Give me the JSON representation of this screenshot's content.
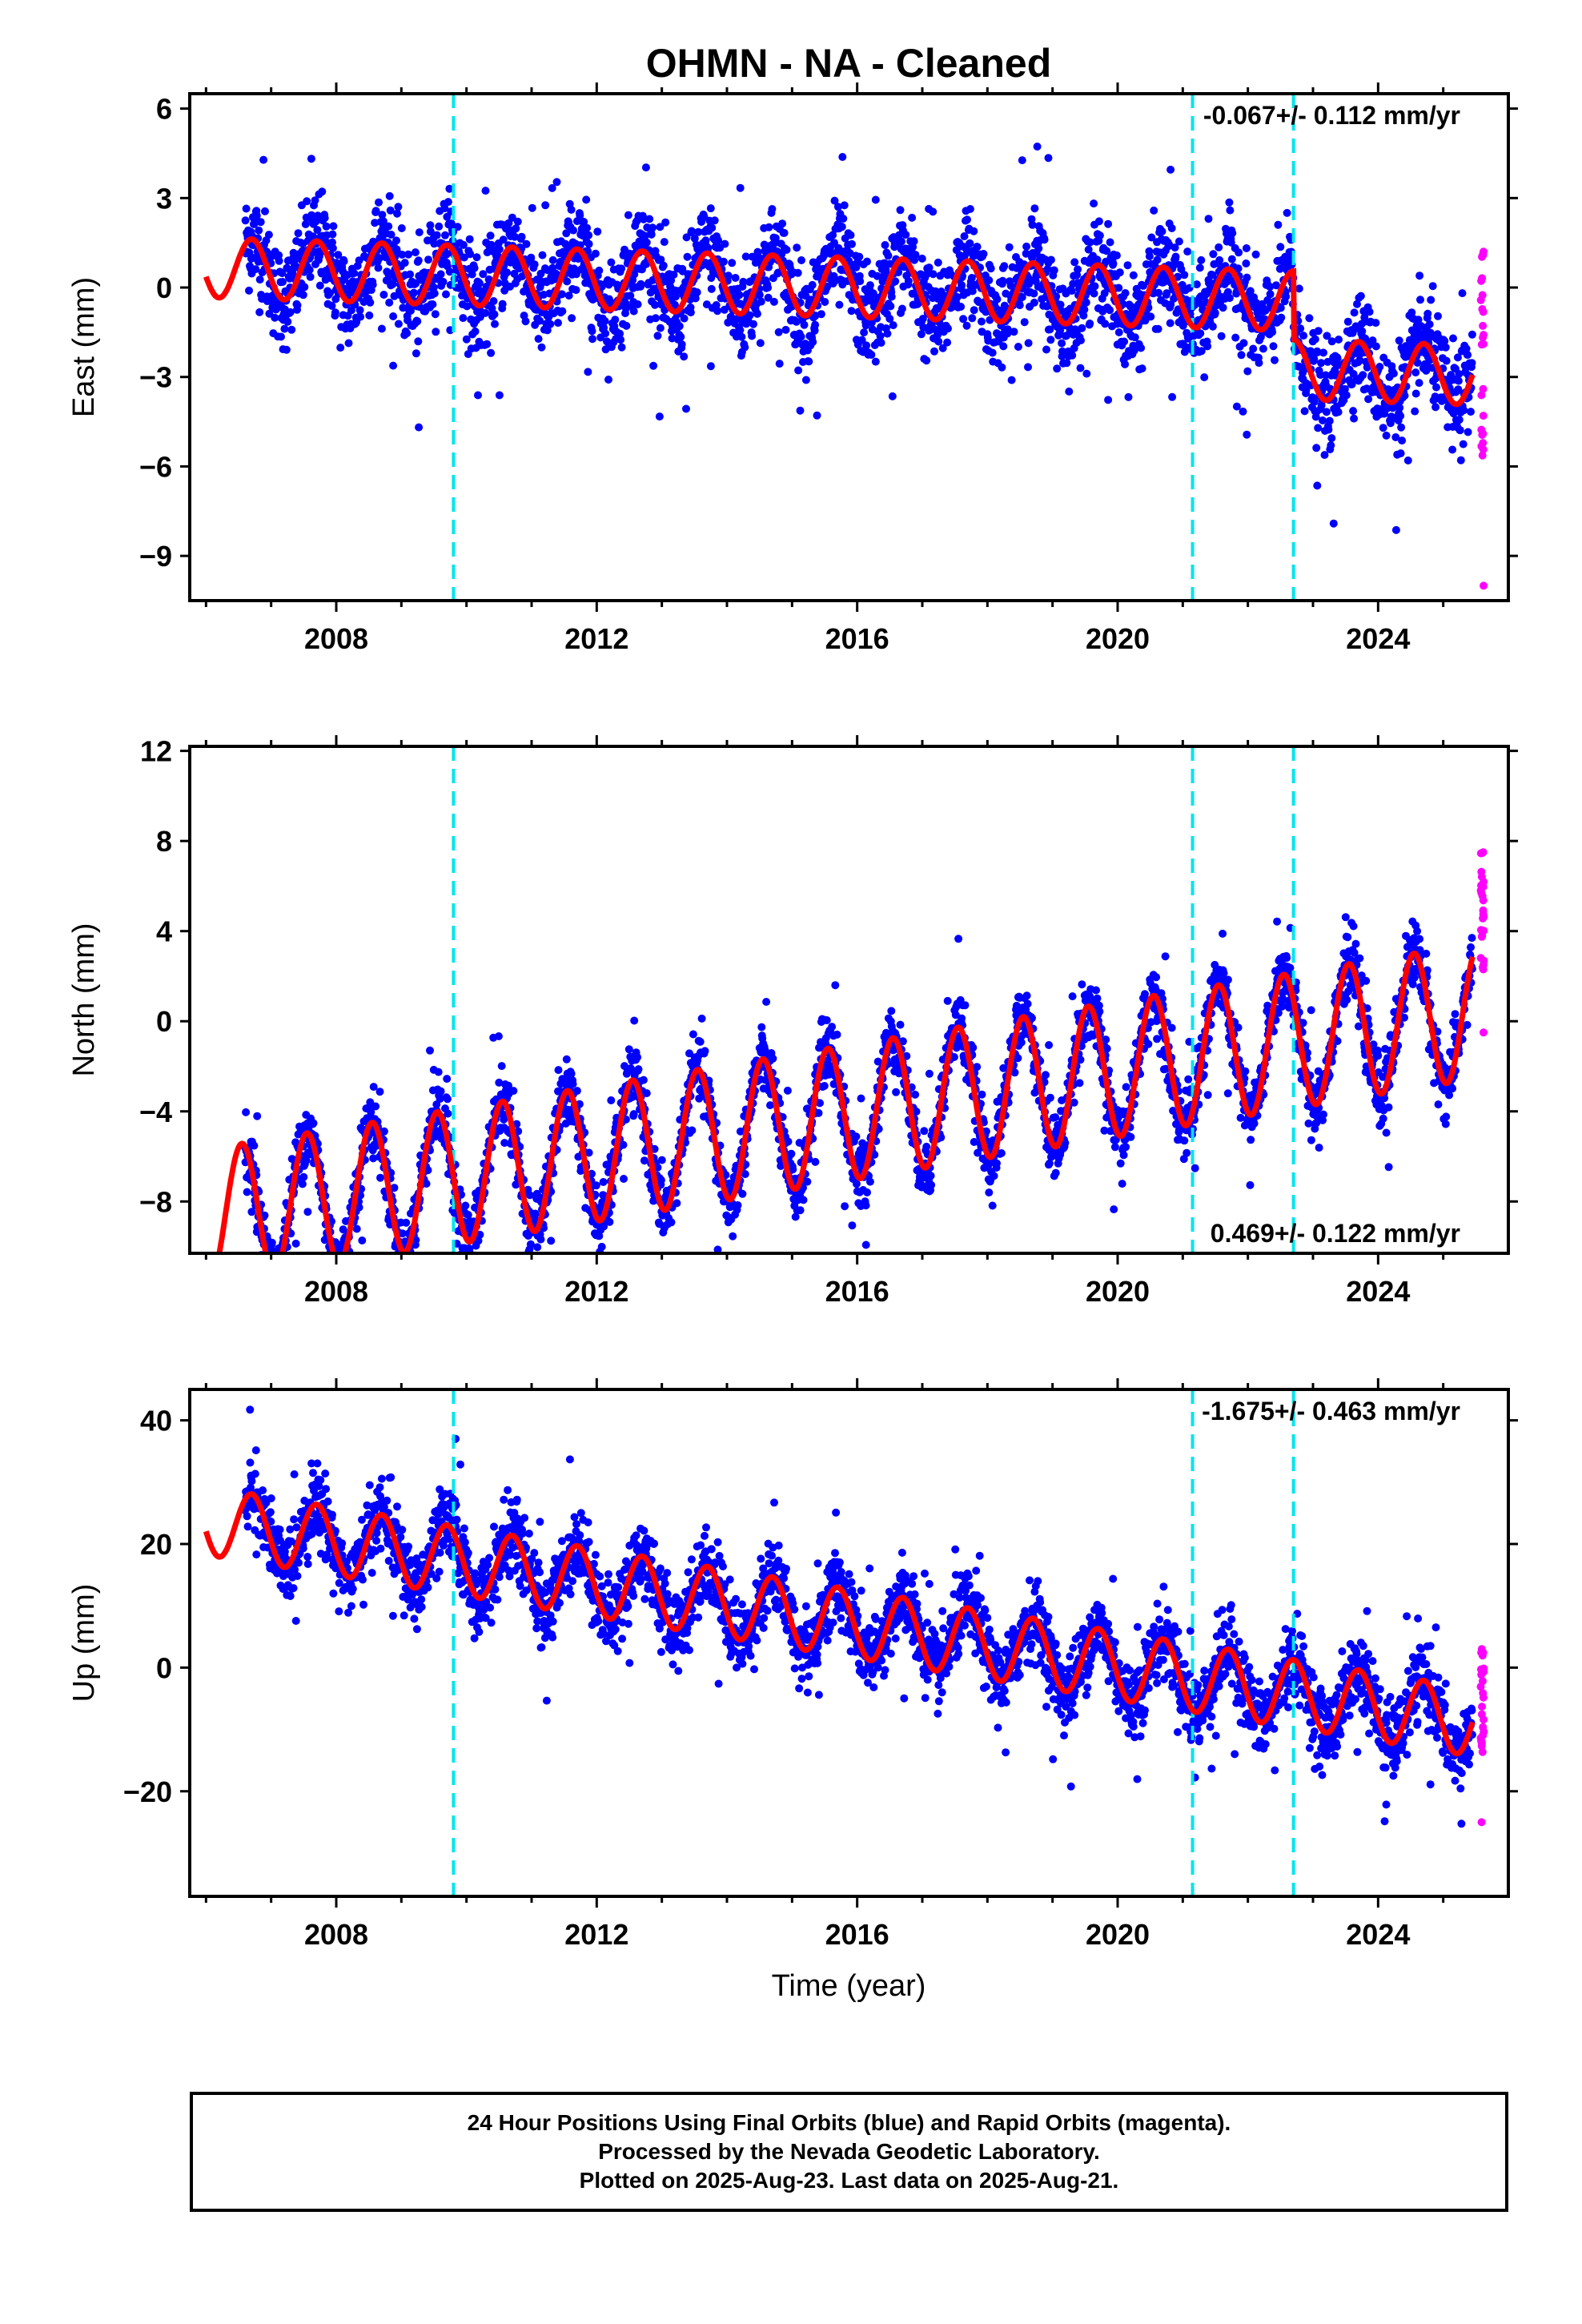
{
  "chart_data": [
    {
      "type": "scatter",
      "title": "OHMN  - NA - Cleaned",
      "ylabel": "East (mm)",
      "xlabel": "",
      "xlim": [
        2005.75,
        2026.0
      ],
      "ylim": [
        -10.5,
        6.5
      ],
      "yticks": [
        6,
        3,
        0,
        -3,
        -6,
        -9
      ],
      "xticks": [
        2008,
        2012,
        2016,
        2020,
        2024
      ],
      "rate_label": "-0.067+/- 0.112 mm/yr",
      "rate_label_position": "top-right",
      "breaks": [
        2009.8,
        2021.15,
        2022.7
      ],
      "series": [
        {
          "name": "Final Orbits",
          "color": "#0000ff",
          "kind": "points",
          "trend": {
            "start": 2006.6,
            "end": 2025.45,
            "offset": 0.0,
            "slope": -0.067,
            "amp": 1.0,
            "noise": 1.1,
            "steps": [
              {
                "t": 2022.7,
                "dy": -2.3
              }
            ],
            "jumps_at_start": 0.0
          }
        },
        {
          "name": "Rapid Orbits",
          "color": "#ff00ff",
          "kind": "points",
          "values_summary": {
            "x": 2025.6,
            "ymin": -10.0,
            "ymax": 1.2
          }
        },
        {
          "name": "Model",
          "color": "#ff0000",
          "kind": "line",
          "start": 2006.0
        }
      ]
    },
    {
      "type": "scatter",
      "title": "",
      "ylabel": "North (mm)",
      "xlabel": "",
      "xlim": [
        2005.75,
        2026.0
      ],
      "ylim": [
        -10.3,
        12.2
      ],
      "yticks": [
        12,
        8,
        4,
        0,
        -4,
        -8
      ],
      "xticks": [
        2008,
        2012,
        2016,
        2020,
        2024
      ],
      "rate_label": "0.469+/- 0.122 mm/yr",
      "rate_label_position": "bottom-right",
      "breaks": [
        2009.8,
        2021.15,
        2022.7
      ],
      "series": [
        {
          "name": "Final Orbits",
          "color": "#0000ff",
          "kind": "points",
          "trend": {
            "start": 2006.6,
            "end": 2025.45,
            "offset": -4.0,
            "slope": 0.469,
            "amp": 3.0,
            "noise": 1.0
          }
        },
        {
          "name": "Rapid Orbits",
          "color": "#ff00ff",
          "kind": "points",
          "values_summary": {
            "x": 2025.6,
            "ymin": -0.5,
            "ymax": 7.5
          }
        },
        {
          "name": "Model",
          "color": "#ff0000",
          "kind": "line",
          "start": 2006.0
        }
      ]
    },
    {
      "type": "scatter",
      "title": "",
      "ylabel": "Up (mm)",
      "xlabel": "Time (year)",
      "xlim": [
        2005.75,
        2026.0
      ],
      "ylim": [
        -37.0,
        45.0
      ],
      "yticks": [
        40,
        20,
        0,
        -20
      ],
      "xticks": [
        2008,
        2012,
        2016,
        2020,
        2024
      ],
      "rate_label": "-1.675+/- 0.463 mm/yr",
      "rate_label_position": "top-right",
      "breaks": [
        2009.8,
        2021.15,
        2022.7
      ],
      "series": [
        {
          "name": "Final Orbits",
          "color": "#0000ff",
          "kind": "points",
          "trend": {
            "start": 2006.6,
            "end": 2025.45,
            "offset": 7.0,
            "slope": -1.675,
            "amp": 5.5,
            "noise": 4.0
          }
        },
        {
          "name": "Rapid Orbits",
          "color": "#ff00ff",
          "kind": "points",
          "values_summary": {
            "x": 2025.6,
            "ymin": -25.0,
            "ymax": 3.0
          }
        },
        {
          "name": "Model",
          "color": "#ff0000",
          "kind": "line",
          "start": 2006.0
        }
      ]
    }
  ],
  "colors": {
    "final": "#0000ff",
    "rapid": "#ff00ff",
    "model": "#ff0000",
    "breaks": "#00e5ee"
  },
  "footer": {
    "line1": "24 Hour Positions Using Final Orbits (blue) and Rapid Orbits (magenta).",
    "line2": "Processed by the Nevada Geodetic Laboratory.",
    "line3": "Plotted on 2025-Aug-23. Last data on 2025-Aug-21."
  }
}
